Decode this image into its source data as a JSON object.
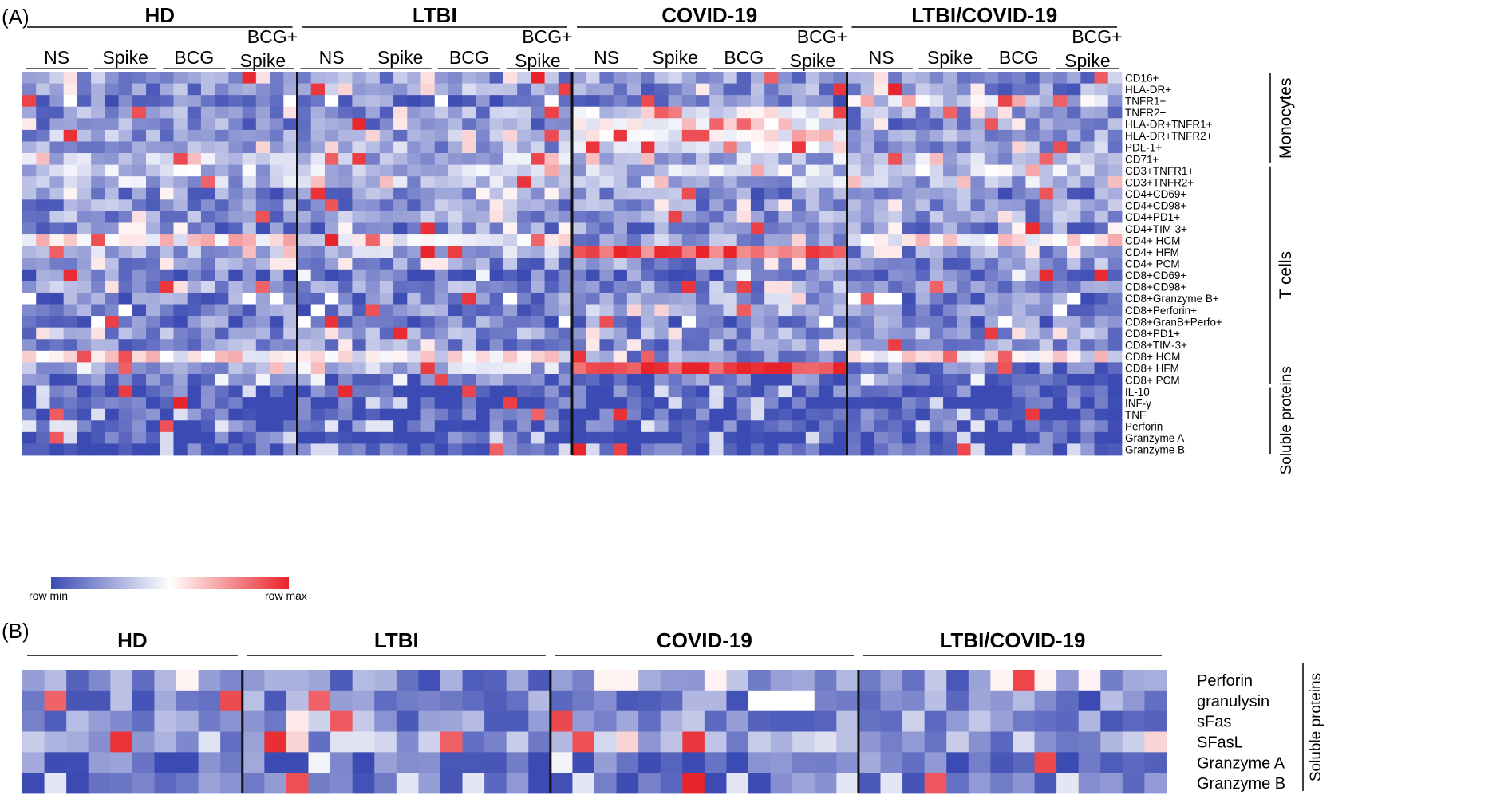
{
  "chart_data": [
    {
      "type": "heatmap",
      "panel_label": "(A)",
      "groups": [
        "HD",
        "LTBI",
        "COVID-19",
        "LTBI/COVID-19"
      ],
      "conditions": [
        "NS",
        "Spike",
        "BCG",
        "BCG+\nSpike"
      ],
      "rows": [
        "CD16+",
        "HLA-DR+",
        "TNFR1+",
        "TNFR2+",
        "HLA-DR+TNFR1+",
        "HLA-DR+TNFR2+",
        "PDL-1+",
        "CD71+",
        "CD3+TNFR1+",
        "CD3+TNFR2+",
        "CD4+CD69+",
        "CD4+CD98+",
        "CD4+PD1+",
        "CD4+TIM-3+",
        "CD4+ HCM",
        "CD4+ HFM",
        "CD4+ PCM",
        "CD8+CD69+",
        "CD8+CD98+",
        "CD8+Granzyme B+",
        "CD8+Perforin+",
        "CD8+GranB+Perfo+",
        "CD8+PD1+",
        "CD8+TIM-3+",
        "CD8+ HCM",
        "CD8+ HFM",
        "CD8+ PCM",
        "IL-10",
        "INF-γ",
        "TNF",
        "Perforin",
        "Granzyme A",
        "Granzyme B"
      ],
      "categories": [
        {
          "label": "Monocytes",
          "row_count": 8
        },
        {
          "label": "T cells",
          "row_count": 19
        },
        {
          "label": "Soluble proteins",
          "row_count": 6
        }
      ],
      "color_scale": {
        "low": "#3C4BB3",
        "mid": "#FFFFFF",
        "high": "#E8232A",
        "min_label": "row min",
        "max_label": "row max"
      },
      "columns_per_condition": 5,
      "values_note": "each cell is a row-normalized value (0 = row min, 1 = row max)",
      "row_levels": [
        0.22,
        0.2,
        0.15,
        0.22,
        0.2,
        0.25,
        0.25,
        0.3,
        0.35,
        0.3,
        0.18,
        0.2,
        0.22,
        0.18,
        0.55,
        0.3,
        0.2,
        0.12,
        0.22,
        0.15,
        0.15,
        0.15,
        0.22,
        0.2,
        0.55,
        0.3,
        0.12,
        0.06,
        0.05,
        0.06,
        0.08,
        0.05,
        0.05
      ],
      "group_overrides": {
        "LTBI": {
          "rows": [
            1,
            14,
            24
          ],
          "levels": [
            0.25,
            0.5,
            0.5
          ]
        },
        "COVID-19": {
          "rows": [
            3,
            4,
            5,
            6,
            14,
            15,
            19,
            20,
            24,
            25
          ],
          "levels": [
            0.45,
            0.5,
            0.55,
            0.45,
            0.25,
            0.9,
            0.25,
            0.25,
            0.2,
            0.95
          ]
        },
        "LTBI/COVID-19": {
          "rows": [
            2,
            14,
            15,
            24,
            25
          ],
          "levels": [
            0.35,
            0.55,
            0.2,
            0.5,
            0.15
          ]
        }
      }
    },
    {
      "type": "heatmap",
      "panel_label": "(B)",
      "groups": [
        "HD",
        "LTBI",
        "COVID-19",
        "LTBI/COVID-19"
      ],
      "columns_per_group": [
        10,
        14,
        14,
        14
      ],
      "rows": [
        "Perforin",
        "granulysin",
        "sFas",
        "SFasL",
        "Granzyme A",
        "Granzyme B"
      ],
      "category": "Soluble proteins",
      "values_note": "each cell is a row-normalized value (0 = row min, 1 = row max)",
      "row_levels": [
        0.18,
        0.15,
        0.2,
        0.25,
        0.12,
        0.08
      ]
    }
  ]
}
